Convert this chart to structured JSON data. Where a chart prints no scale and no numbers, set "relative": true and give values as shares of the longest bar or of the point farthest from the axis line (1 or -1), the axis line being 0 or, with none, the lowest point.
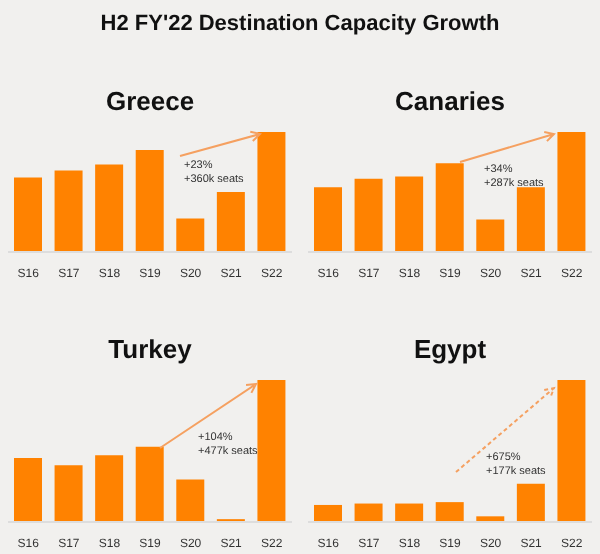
{
  "chart_data": [
    {
      "type": "bar",
      "title": "H2 FY'22 Destination Capacity Growth",
      "subtitle": "Greece",
      "relative": true,
      "categories": [
        "S16",
        "S17",
        "S18",
        "S19",
        "S20",
        "S21",
        "S22"
      ],
      "values": [
        0.62,
        0.68,
        0.73,
        0.85,
        0.28,
        0.5,
        1
      ],
      "color": "#ff8200",
      "annotations": [
        "+23%",
        "+360k seats"
      ],
      "grid": false,
      "legend": false
    },
    {
      "type": "bar",
      "title": "Canaries",
      "relative": true,
      "categories": [
        "S16",
        "S17",
        "S18",
        "S19",
        "S20",
        "S21",
        "S22"
      ],
      "values": [
        0.54,
        0.61,
        0.63,
        0.74,
        0.27,
        0.54,
        1
      ],
      "color": "#ff8200",
      "annotations": [
        "+34%",
        "+287k seats"
      ],
      "grid": false,
      "legend": false
    },
    {
      "type": "bar",
      "title": "Turkey",
      "relative": true,
      "categories": [
        "S16",
        "S17",
        "S18",
        "S19",
        "S20",
        "S21",
        "S22"
      ],
      "values": [
        0.45,
        0.4,
        0.47,
        0.53,
        0.3,
        0.02,
        1
      ],
      "color": "#ff8200",
      "annotations": [
        "+104%",
        "+477k seats"
      ],
      "grid": false,
      "legend": false
    },
    {
      "type": "bar",
      "title": "Egypt",
      "relative": true,
      "categories": [
        "S16",
        "S17",
        "S18",
        "S19",
        "S20",
        "S21",
        "S22"
      ],
      "values": [
        0.12,
        0.13,
        0.13,
        0.14,
        0.04,
        0.27,
        1
      ],
      "color": "#ff8200",
      "annotations": [
        "+675%",
        "+177k seats"
      ],
      "grid": false,
      "legend": false
    }
  ]
}
